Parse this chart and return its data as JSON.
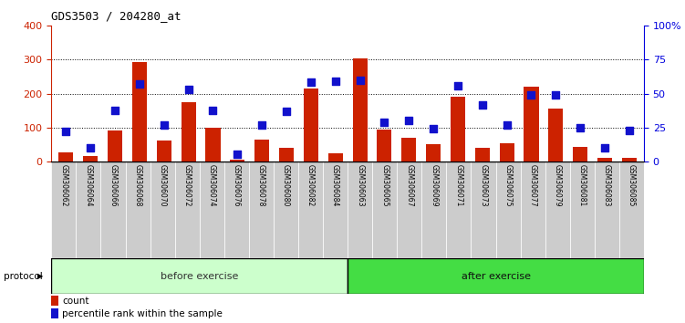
{
  "title": "GDS3503 / 204280_at",
  "samples": [
    "GSM306062",
    "GSM306064",
    "GSM306066",
    "GSM306068",
    "GSM306070",
    "GSM306072",
    "GSM306074",
    "GSM306076",
    "GSM306078",
    "GSM306080",
    "GSM306082",
    "GSM306084",
    "GSM306063",
    "GSM306065",
    "GSM306067",
    "GSM306069",
    "GSM306071",
    "GSM306073",
    "GSM306075",
    "GSM306077",
    "GSM306079",
    "GSM306081",
    "GSM306083",
    "GSM306085"
  ],
  "count": [
    28,
    16,
    92,
    293,
    62,
    175,
    100,
    5,
    65,
    40,
    215,
    25,
    305,
    95,
    70,
    50,
    190,
    40,
    55,
    220,
    155,
    43,
    12,
    12
  ],
  "percentile_raw": [
    88,
    40,
    152,
    228,
    108,
    212,
    150,
    22,
    107,
    148,
    235,
    238,
    240,
    115,
    120,
    96,
    222,
    168,
    108,
    196,
    196,
    100,
    40,
    92
  ],
  "before_exercise_count": 12,
  "after_exercise_count": 12,
  "protocol_label": "protocol",
  "before_label": "before exercise",
  "after_label": "after exercise",
  "count_label": "count",
  "percentile_label": "percentile rank within the sample",
  "left_ylim": [
    0,
    400
  ],
  "left_yticks": [
    0,
    100,
    200,
    300,
    400
  ],
  "right_ylim": [
    0,
    100
  ],
  "right_yticks": [
    0,
    25,
    50,
    75,
    100
  ],
  "right_yticklabels": [
    "0",
    "25",
    "50",
    "75",
    "100%"
  ],
  "bar_color": "#cc2200",
  "dot_color": "#1111cc",
  "bg_plot": "#ffffff",
  "bg_xtick": "#cccccc",
  "bg_before": "#ccffcc",
  "bg_after": "#44dd44",
  "grid_color": "#000000",
  "title_color": "#000000",
  "axis_left_color": "#cc2200",
  "axis_right_color": "#0000dd"
}
